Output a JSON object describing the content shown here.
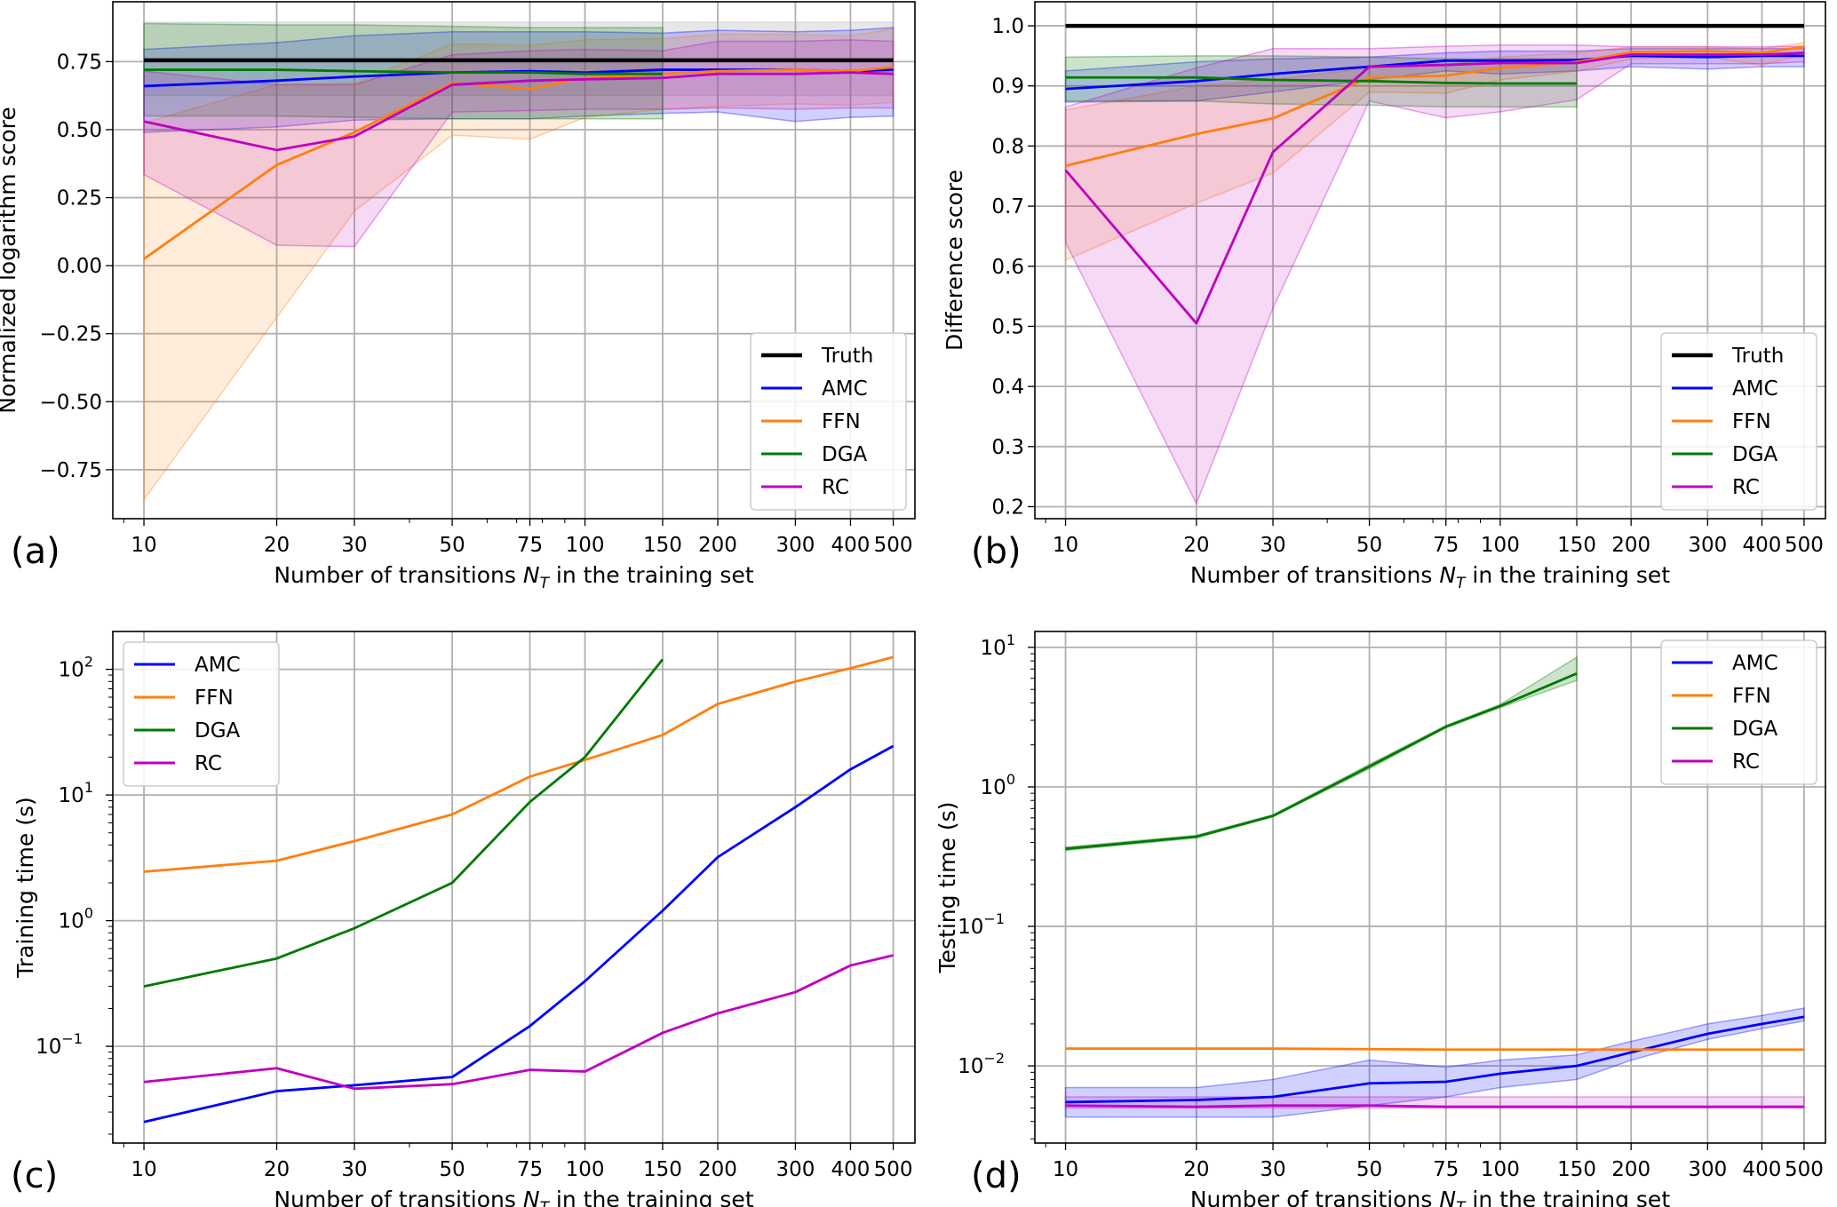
{
  "x_ticks": [
    10,
    20,
    30,
    50,
    75,
    100,
    150,
    200,
    300,
    400,
    500
  ],
  "x_tick_labels": [
    "10",
    "20",
    "30",
    "50",
    "75",
    "100",
    "150",
    "200",
    "300",
    "400",
    "500"
  ],
  "xlabel": "Number of transitions N_T in the training set",
  "colors": {
    "Truth": "#000000",
    "AMC": "#0000ff",
    "FFN": "#ff7f0e",
    "DGA": "#007a00",
    "RC": "#bf00bf"
  },
  "chart_data": [
    {
      "panel": "(a)",
      "type": "line",
      "xscale": "log",
      "yscale": "linear",
      "ylabel": "Normalized logarithm score",
      "xlabel": "Number of transitions N_T in the training set",
      "xlim": [
        8.5,
        560
      ],
      "ylim": [
        -0.93,
        0.97
      ],
      "yticks": [
        -0.75,
        -0.5,
        -0.25,
        0.0,
        0.25,
        0.5,
        0.75
      ],
      "ytick_labels": [
        "−0.75",
        "−0.50",
        "−0.25",
        "0.00",
        "0.25",
        "0.50",
        "0.75"
      ],
      "grid": true,
      "legend": {
        "position": "bottom-right",
        "entries": [
          "Truth",
          "AMC",
          "FFN",
          "DGA",
          "RC"
        ]
      },
      "series": [
        {
          "name": "Truth",
          "x": [
            10,
            500
          ],
          "y": [
            0.755,
            0.755
          ],
          "band_low": [
            0.625,
            0.625
          ],
          "band_high": [
            0.895,
            0.895
          ],
          "band_color": "#b0b0b0"
        },
        {
          "name": "AMC",
          "x": [
            10,
            20,
            30,
            50,
            75,
            100,
            150,
            200,
            300,
            400,
            500
          ],
          "y": [
            0.66,
            0.68,
            0.695,
            0.71,
            0.715,
            0.71,
            0.72,
            0.72,
            0.72,
            0.715,
            0.72
          ],
          "band_low": [
            0.49,
            0.51,
            0.535,
            0.54,
            0.54,
            0.55,
            0.56,
            0.565,
            0.53,
            0.545,
            0.55
          ],
          "band_high": [
            0.795,
            0.82,
            0.845,
            0.86,
            0.86,
            0.86,
            0.855,
            0.865,
            0.86,
            0.865,
            0.875
          ]
        },
        {
          "name": "FFN",
          "x": [
            10,
            20,
            30,
            50,
            75,
            100,
            150,
            200,
            300,
            400,
            500
          ],
          "y": [
            0.025,
            0.37,
            0.49,
            0.67,
            0.65,
            0.69,
            0.705,
            0.715,
            0.72,
            0.715,
            0.73
          ],
          "band_low": [
            -0.86,
            -0.19,
            0.2,
            0.48,
            0.465,
            0.545,
            0.575,
            0.585,
            0.595,
            0.59,
            0.6
          ],
          "band_high": [
            0.525,
            0.665,
            0.67,
            0.815,
            0.81,
            0.83,
            0.835,
            0.85,
            0.85,
            0.845,
            0.87
          ]
        },
        {
          "name": "DGA",
          "x": [
            10,
            20,
            30,
            50,
            75,
            100,
            150
          ],
          "y": [
            0.72,
            0.72,
            0.715,
            0.71,
            0.71,
            0.705,
            0.705
          ],
          "band_low": [
            0.55,
            0.55,
            0.545,
            0.54,
            0.54,
            0.54,
            0.54
          ],
          "band_high": [
            0.89,
            0.885,
            0.885,
            0.88,
            0.875,
            0.875,
            0.875
          ]
        },
        {
          "name": "RC",
          "x": [
            10,
            20,
            30,
            50,
            75,
            100,
            150,
            200,
            300,
            400,
            500
          ],
          "y": [
            0.53,
            0.425,
            0.475,
            0.665,
            0.68,
            0.685,
            0.69,
            0.705,
            0.705,
            0.71,
            0.705
          ],
          "band_low": [
            0.335,
            0.075,
            0.07,
            0.565,
            0.57,
            0.575,
            0.575,
            0.58,
            0.575,
            0.58,
            0.58
          ],
          "band_high": [
            0.715,
            0.665,
            0.665,
            0.775,
            0.79,
            0.795,
            0.79,
            0.825,
            0.825,
            0.83,
            0.825
          ]
        }
      ]
    },
    {
      "panel": "(b)",
      "type": "line",
      "xscale": "log",
      "yscale": "linear",
      "ylabel": "Difference score",
      "xlabel": "Number of transitions N_T in the training set",
      "xlim": [
        8.5,
        560
      ],
      "ylim": [
        0.18,
        1.04
      ],
      "yticks": [
        0.2,
        0.3,
        0.4,
        0.5,
        0.6,
        0.7,
        0.8,
        0.9,
        1.0
      ],
      "ytick_labels": [
        "0.2",
        "0.3",
        "0.4",
        "0.5",
        "0.6",
        "0.7",
        "0.8",
        "0.9",
        "1.0"
      ],
      "grid": true,
      "legend": {
        "position": "bottom-right",
        "entries": [
          "Truth",
          "AMC",
          "FFN",
          "DGA",
          "RC"
        ]
      },
      "series": [
        {
          "name": "Truth",
          "x": [
            10,
            500
          ],
          "y": [
            1.0,
            1.0
          ]
        },
        {
          "name": "AMC",
          "x": [
            10,
            20,
            30,
            50,
            75,
            100,
            150,
            200,
            300,
            400,
            500
          ],
          "y": [
            0.895,
            0.908,
            0.92,
            0.932,
            0.942,
            0.942,
            0.943,
            0.95,
            0.948,
            0.95,
            0.95
          ],
          "band_low": [
            0.873,
            0.875,
            0.89,
            0.91,
            0.925,
            0.92,
            0.925,
            0.932,
            0.928,
            0.932,
            0.932
          ],
          "band_high": [
            0.925,
            0.94,
            0.945,
            0.948,
            0.955,
            0.958,
            0.958,
            0.962,
            0.962,
            0.962,
            0.962
          ]
        },
        {
          "name": "FFN",
          "x": [
            10,
            20,
            30,
            50,
            75,
            100,
            150,
            200,
            300,
            400,
            500
          ],
          "y": [
            0.767,
            0.82,
            0.846,
            0.914,
            0.917,
            0.93,
            0.94,
            0.956,
            0.958,
            0.955,
            0.965
          ],
          "band_low": [
            0.61,
            0.705,
            0.755,
            0.89,
            0.888,
            0.91,
            0.925,
            0.945,
            0.948,
            0.935,
            0.952
          ],
          "band_high": [
            0.86,
            0.9,
            0.91,
            0.93,
            0.935,
            0.948,
            0.955,
            0.965,
            0.965,
            0.962,
            0.972
          ]
        },
        {
          "name": "DGA",
          "x": [
            10,
            20,
            30,
            50,
            75,
            100,
            150
          ],
          "y": [
            0.914,
            0.914,
            0.91,
            0.908,
            0.905,
            0.904,
            0.904
          ],
          "band_low": [
            0.875,
            0.875,
            0.87,
            0.868,
            0.865,
            0.865,
            0.865
          ],
          "band_high": [
            0.948,
            0.95,
            0.95,
            0.948,
            0.945,
            0.945,
            0.945
          ]
        },
        {
          "name": "RC",
          "x": [
            10,
            20,
            30,
            50,
            75,
            100,
            150,
            200,
            300,
            400,
            500
          ],
          "y": [
            0.76,
            0.505,
            0.79,
            0.932,
            0.935,
            0.938,
            0.938,
            0.952,
            0.952,
            0.952,
            0.955
          ],
          "band_low": [
            0.64,
            0.205,
            0.53,
            0.875,
            0.847,
            0.857,
            0.877,
            0.937,
            0.937,
            0.937,
            0.94
          ],
          "band_high": [
            0.865,
            0.93,
            0.962,
            0.962,
            0.966,
            0.968,
            0.968,
            0.965,
            0.965,
            0.965,
            0.966
          ]
        }
      ]
    },
    {
      "panel": "(c)",
      "type": "line",
      "xscale": "log",
      "yscale": "log",
      "ylabel": "Training time (s)",
      "xlabel": "Number of transitions N_T in the training set",
      "xlim": [
        8.5,
        560
      ],
      "ylim": [
        0.017,
        200
      ],
      "yticks": [
        0.1,
        1,
        10,
        100
      ],
      "ytick_labels": [
        "10^-1",
        "10^0",
        "10^1",
        "10^2"
      ],
      "grid": true,
      "legend": {
        "position": "top-left",
        "entries": [
          "AMC",
          "FFN",
          "DGA",
          "RC"
        ]
      },
      "series": [
        {
          "name": "AMC",
          "x": [
            10,
            20,
            30,
            50,
            75,
            100,
            150,
            200,
            300,
            400,
            500
          ],
          "y": [
            0.025,
            0.044,
            0.049,
            0.057,
            0.145,
            0.33,
            1.2,
            3.2,
            8.0,
            16.0,
            24.5
          ]
        },
        {
          "name": "FFN",
          "x": [
            10,
            20,
            30,
            50,
            75,
            100,
            150,
            200,
            300,
            400,
            500
          ],
          "y": [
            2.45,
            3.0,
            4.3,
            7.0,
            14.0,
            19.0,
            30.0,
            53.0,
            80.0,
            102.0,
            125.0
          ]
        },
        {
          "name": "DGA",
          "x": [
            10,
            20,
            30,
            50,
            75,
            100,
            150
          ],
          "y": [
            0.3,
            0.5,
            0.87,
            2.0,
            8.8,
            20.0,
            120.0
          ]
        },
        {
          "name": "RC",
          "x": [
            10,
            20,
            30,
            50,
            75,
            100,
            150,
            200,
            300,
            400,
            500
          ],
          "y": [
            0.052,
            0.067,
            0.046,
            0.05,
            0.065,
            0.063,
            0.128,
            0.183,
            0.27,
            0.44,
            0.53
          ]
        }
      ]
    },
    {
      "panel": "(d)",
      "type": "line",
      "xscale": "log",
      "yscale": "log",
      "ylabel": "Testing time (s)",
      "xlabel": "Number of transitions N_T in the training set",
      "xlim": [
        8.5,
        560
      ],
      "ylim": [
        0.0028,
        13
      ],
      "yticks": [
        0.01,
        0.1,
        1,
        10
      ],
      "ytick_labels": [
        "10^-2",
        "10^-1",
        "10^0",
        "10^1"
      ],
      "grid": true,
      "legend": {
        "position": "top-right",
        "entries": [
          "AMC",
          "FFN",
          "DGA",
          "RC"
        ]
      },
      "series": [
        {
          "name": "AMC",
          "x": [
            10,
            20,
            30,
            50,
            75,
            100,
            150,
            200,
            300,
            400,
            500
          ],
          "y": [
            0.0055,
            0.0057,
            0.006,
            0.0075,
            0.0077,
            0.0088,
            0.01,
            0.0125,
            0.017,
            0.02,
            0.0225
          ],
          "band_low": [
            0.0043,
            0.0043,
            0.0043,
            0.0052,
            0.006,
            0.007,
            0.008,
            0.011,
            0.0155,
            0.0185,
            0.021
          ],
          "band_high": [
            0.007,
            0.007,
            0.008,
            0.011,
            0.0098,
            0.011,
            0.012,
            0.015,
            0.02,
            0.023,
            0.026
          ]
        },
        {
          "name": "FFN",
          "x": [
            10,
            20,
            30,
            50,
            75,
            100,
            150,
            200,
            300,
            400,
            500
          ],
          "y": [
            0.0133,
            0.0133,
            0.0133,
            0.0132,
            0.0131,
            0.0131,
            0.0131,
            0.0131,
            0.0131,
            0.0131,
            0.0131
          ]
        },
        {
          "name": "DGA",
          "x": [
            10,
            20,
            30,
            50,
            75,
            100,
            150
          ],
          "y": [
            0.36,
            0.44,
            0.62,
            1.4,
            2.7,
            3.8,
            6.5
          ],
          "band_low": [
            0.35,
            0.43,
            0.61,
            1.35,
            2.65,
            3.7,
            5.8
          ],
          "band_high": [
            0.37,
            0.45,
            0.63,
            1.45,
            2.75,
            3.9,
            8.5
          ]
        },
        {
          "name": "RC",
          "x": [
            10,
            20,
            30,
            50,
            75,
            100,
            150,
            200,
            300,
            400,
            500
          ],
          "y": [
            0.0052,
            0.0051,
            0.0052,
            0.0052,
            0.0051,
            0.0051,
            0.0051,
            0.0051,
            0.0051,
            0.0051,
            0.0051
          ],
          "band_low": [
            0.005,
            0.005,
            0.005,
            0.005,
            0.005,
            0.005,
            0.005,
            0.005,
            0.005,
            0.005,
            0.005
          ],
          "band_high": [
            0.006,
            0.006,
            0.006,
            0.006,
            0.006,
            0.006,
            0.006,
            0.006,
            0.006,
            0.006,
            0.006
          ]
        }
      ]
    }
  ]
}
